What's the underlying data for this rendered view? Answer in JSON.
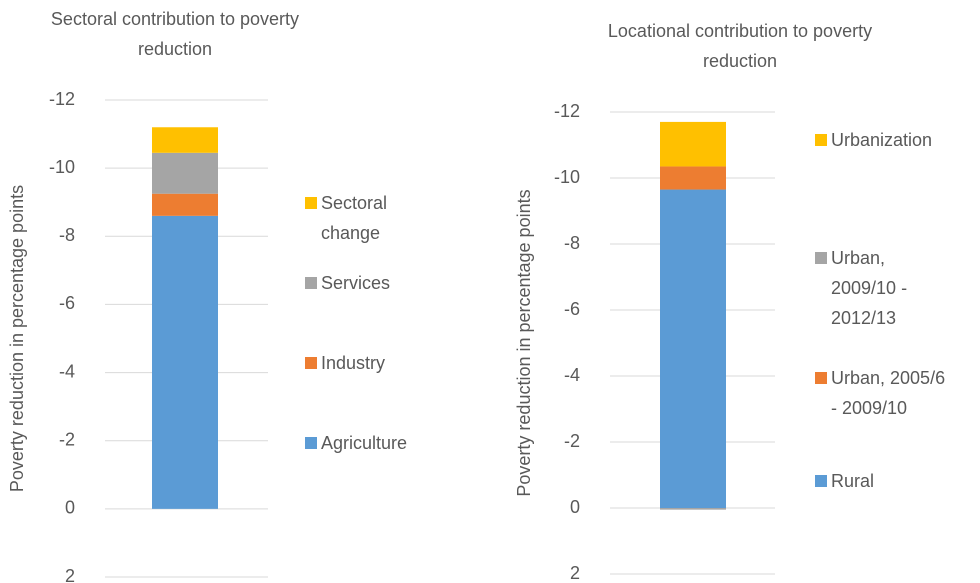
{
  "chart_data": [
    {
      "type": "bar",
      "stacked": true,
      "title": [
        "Sectoral contribution to poverty",
        "reduction"
      ],
      "y_label": "Poverty reduction in percentage points",
      "ylim": [
        2,
        -12
      ],
      "yticks": [
        2,
        0,
        -2,
        -4,
        -6,
        -8,
        -10,
        -12
      ],
      "grid": true,
      "series": [
        {
          "name": "Agriculture",
          "color": "#5b9bd5",
          "values": [
            -8.6
          ]
        },
        {
          "name": "Industry",
          "color": "#ed7d31",
          "values": [
            -0.65
          ]
        },
        {
          "name": "Services",
          "color": "#a5a5a5",
          "values": [
            -1.2
          ]
        },
        {
          "name": "Sectoral change",
          "color": "#ffc000",
          "values": [
            -0.75
          ]
        }
      ]
    },
    {
      "type": "bar",
      "stacked": true,
      "title": [
        "Locational contribution to poverty",
        "reduction"
      ],
      "y_label": "Poverty reduction in percentage points",
      "ylim": [
        2,
        -12
      ],
      "yticks": [
        2,
        0,
        -2,
        -4,
        -6,
        -8,
        -10,
        -12
      ],
      "grid": true,
      "series": [
        {
          "name": "Rural",
          "color": "#5b9bd5",
          "values": [
            -9.65
          ]
        },
        {
          "name": "Urban, 2005/6 - 2009/10",
          "color": "#ed7d31",
          "values": [
            -0.7
          ]
        },
        {
          "name": "Urban, 2009/10 - 2012/13",
          "color": "#a5a5a5",
          "values": [
            0.05
          ]
        },
        {
          "name": "Urbanization",
          "color": "#ffc000",
          "values": [
            -1.35
          ]
        }
      ]
    }
  ]
}
